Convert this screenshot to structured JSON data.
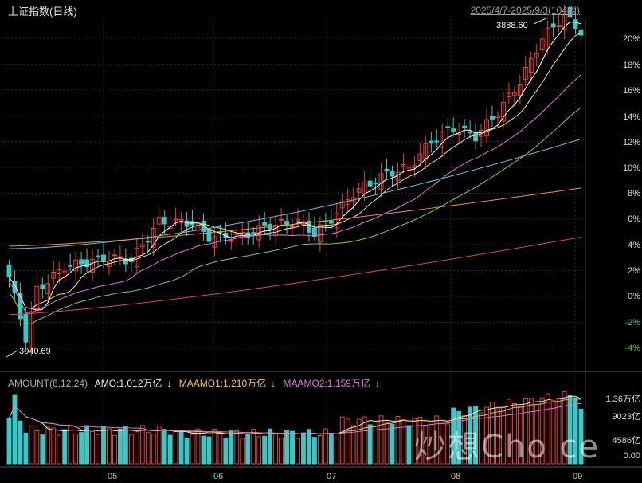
{
  "header": {
    "title": "上证指数(日线)",
    "range": "2025/4/7-2025/9/3(104根)"
  },
  "indicator": {
    "name": "AMOUNT(6,12,24)",
    "amo": "AMO:1.012万亿",
    "amo_arrow": "↓",
    "maamo1": "MAAMO1:1.210万亿",
    "maamo1_arrow": "↓",
    "maamo2": "MAAMO2:1.159万亿",
    "maamo2_arrow": "↓"
  },
  "colors": {
    "up": "#ee3c3c",
    "down": "#38c8c8",
    "ma5": "#ffffff",
    "ma10": "#f2e27a",
    "ma20": "#e070e0",
    "ma30": "#7ad03c",
    "ma60": "#5cc8e0",
    "ma120": "#f0903c",
    "ma250": "#e04060",
    "amo_label": "#e8e8e8",
    "maamo1": "#f2c24a",
    "maamo2": "#e070e0"
  },
  "annotations": {
    "high": "3888.60",
    "low": "3040.69"
  },
  "watermark": "炒想Cho ce",
  "chart_data": {
    "type": "candlestick",
    "title": "上证指数(日线)",
    "date_range": [
      "2025-04-07",
      "2025-09-03"
    ],
    "bar_count": 104,
    "x_ticks": [
      "05",
      "06",
      "07",
      "08",
      "09"
    ],
    "y_ticks_right": [
      "20%",
      "18%",
      "16%",
      "14%",
      "12%",
      "10%",
      "8%",
      "6%",
      "4%",
      "2%",
      "0%",
      "-2%",
      "-4%"
    ],
    "y_axis_pct_range": [
      -5,
      22
    ],
    "high": 3888.6,
    "low": 3040.69,
    "volume_ticks": [
      "1.36万亿",
      "9023亿",
      "4586亿",
      "0.00"
    ],
    "volume_range_yi": [
      0,
      13600
    ],
    "last": {
      "amo_wanyi": 1.012,
      "maamo1_wanyi": 1.21,
      "maamo2_wanyi": 1.159
    }
  }
}
